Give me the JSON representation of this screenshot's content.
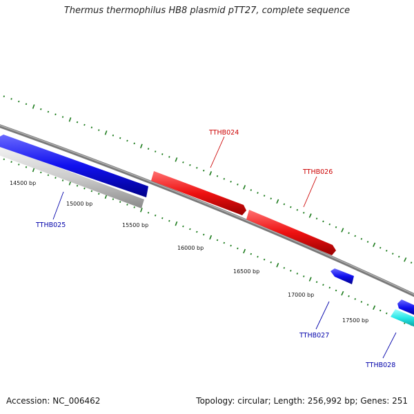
{
  "title": "Thermus thermophilus HB8 plasmid pTT27, complete sequence",
  "footer": {
    "accession": "Accession: NC_006462",
    "topology": "Topology: circular; Length: 256,992 bp; Genes: 251"
  },
  "colors": {
    "forward_gene": "#1010ee",
    "reverse_gene": "#ee1111",
    "highlight_gene": "#22e5e5",
    "other_gene": "#c8c8c8",
    "backbone": "#7a7a7a",
    "ticks": "#1a7a1a",
    "red_label": "#cc0000",
    "blue_label": "#0000aa"
  },
  "scale_labels": [
    "14500 bp",
    "15000 bp",
    "15500 bp",
    "16000 bp",
    "16500 bp",
    "17000 bp",
    "17500 bp"
  ],
  "gene_labels": [
    {
      "name": "TTHB024",
      "color": "red"
    },
    {
      "name": "TTHB026",
      "color": "red"
    },
    {
      "name": "TTHB025",
      "color": "blue"
    },
    {
      "name": "TTHB027",
      "color": "blue"
    },
    {
      "name": "TTHB028",
      "color": "blue"
    }
  ]
}
